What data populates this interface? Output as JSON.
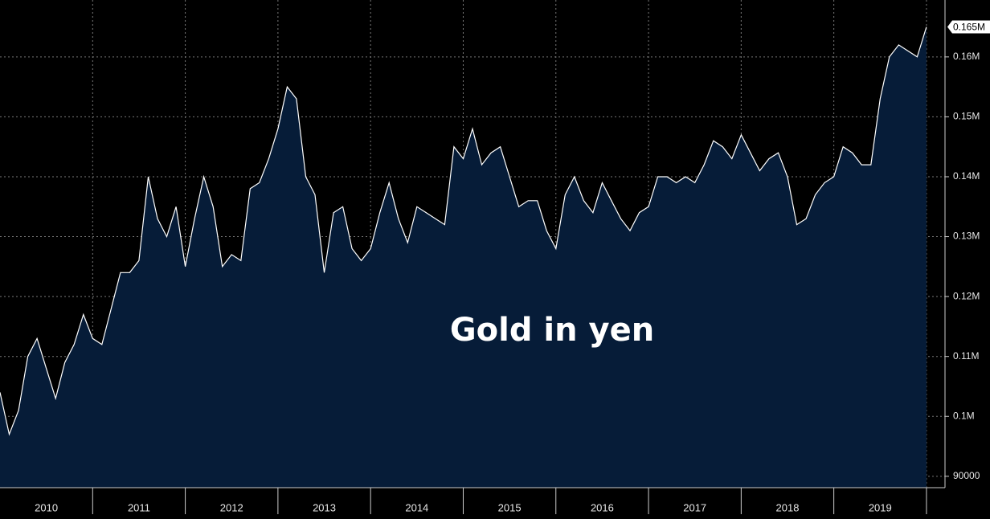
{
  "chart_data": {
    "type": "area",
    "title": "Gold in yen",
    "categories": [
      "2010",
      "2011",
      "2012",
      "2013",
      "2014",
      "2015",
      "2016",
      "2017",
      "2018",
      "2019"
    ],
    "xlim": [
      2010,
      2020.2
    ],
    "xticks": [
      2011,
      2012,
      2013,
      2014,
      2015,
      2016,
      2017,
      2018,
      2019,
      2020
    ],
    "ylim": [
      88100,
      169500
    ],
    "yticks": [
      90000,
      {
        "value": 100000,
        "label": "0.1M"
      },
      {
        "value": 110000,
        "label": "0.11M"
      },
      {
        "value": 120000,
        "label": "0.12M"
      },
      {
        "value": 130000,
        "label": "0.13M"
      },
      {
        "value": 140000,
        "label": "0.14M"
      },
      {
        "value": 150000,
        "label": "0.15M"
      },
      {
        "value": 160000,
        "label": "0.16M"
      }
    ],
    "grid": true,
    "x": [
      2010.0,
      2010.1,
      2010.2,
      2010.3,
      2010.4,
      2010.5,
      2010.6,
      2010.7,
      2010.8,
      2010.9,
      2011.0,
      2011.1,
      2011.2,
      2011.3,
      2011.4,
      2011.5,
      2011.6,
      2011.7,
      2011.8,
      2011.9,
      2012.0,
      2012.1,
      2012.2,
      2012.3,
      2012.4,
      2012.5,
      2012.6,
      2012.7,
      2012.8,
      2012.9,
      2013.0,
      2013.1,
      2013.2,
      2013.3,
      2013.4,
      2013.5,
      2013.6,
      2013.7,
      2013.8,
      2013.9,
      2014.0,
      2014.1,
      2014.2,
      2014.3,
      2014.4,
      2014.5,
      2014.6,
      2014.7,
      2014.8,
      2014.9,
      2015.0,
      2015.1,
      2015.2,
      2015.3,
      2015.4,
      2015.5,
      2015.6,
      2015.7,
      2015.8,
      2015.9,
      2016.0,
      2016.1,
      2016.2,
      2016.3,
      2016.4,
      2016.5,
      2016.6,
      2016.7,
      2016.8,
      2016.9,
      2017.0,
      2017.1,
      2017.2,
      2017.3,
      2017.4,
      2017.5,
      2017.6,
      2017.7,
      2017.8,
      2017.9,
      2018.0,
      2018.1,
      2018.2,
      2018.3,
      2018.4,
      2018.5,
      2018.6,
      2018.7,
      2018.8,
      2018.9,
      2019.0,
      2019.1,
      2019.2,
      2019.3,
      2019.4,
      2019.5,
      2019.6,
      2019.7,
      2019.8,
      2019.9,
      2020.0
    ],
    "series": [
      {
        "color": "#ffffff",
        "fill": "#061c38",
        "values": [
          104000,
          97000,
          101000,
          110000,
          113000,
          108000,
          103000,
          109000,
          112000,
          117000,
          113000,
          112000,
          118000,
          124000,
          124000,
          126000,
          140000,
          133000,
          130000,
          135000,
          125000,
          133000,
          140000,
          135000,
          125000,
          127000,
          126000,
          138000,
          139000,
          143000,
          148000,
          155000,
          153000,
          140000,
          137000,
          124000,
          134000,
          135000,
          128000,
          126000,
          128000,
          134000,
          139000,
          133000,
          129000,
          135000,
          134000,
          133000,
          132000,
          145000,
          143000,
          148000,
          142000,
          144000,
          145000,
          140000,
          135000,
          136000,
          136000,
          131000,
          128000,
          137000,
          140000,
          136000,
          134000,
          139000,
          136000,
          133000,
          131000,
          134000,
          135000,
          140000,
          140000,
          139000,
          140000,
          139000,
          142000,
          146000,
          145000,
          143000,
          147000,
          144000,
          141000,
          143000,
          144000,
          140000,
          132000,
          133000,
          137000,
          139000,
          140000,
          145000,
          144000,
          142000,
          142000,
          153000,
          160000,
          162000,
          161000,
          160000,
          165000
        ],
        "end_label": "0.165M"
      }
    ]
  }
}
